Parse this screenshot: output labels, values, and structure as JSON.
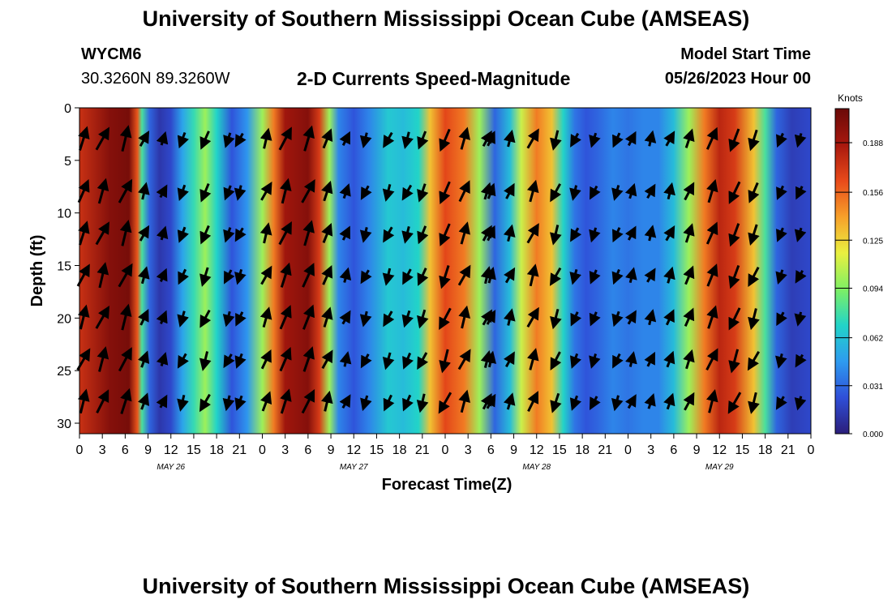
{
  "header": {
    "title": "University of Southern Mississippi Ocean Cube (AMSEAS)",
    "station": "WYCM6",
    "coords": "30.3260N  89.3260W",
    "subtitle": "2-D Currents Speed-Magnitude",
    "model_label": "Model Start Time",
    "model_time": "05/26/2023 Hour 00"
  },
  "footer": {
    "title": "University of Southern Mississippi Ocean Cube (AMSEAS)"
  },
  "chart_data": {
    "type": "heatmap",
    "title": "2-D Currents Speed-Magnitude",
    "xlabel": "Forecast Time(Z)",
    "ylabel": "Depth (ft)",
    "xlim": [
      0,
      96
    ],
    "ylim": [
      0,
      31
    ],
    "y_inverted": true,
    "x_tick_values": [
      0,
      3,
      6,
      9,
      12,
      15,
      18,
      21,
      24,
      27,
      30,
      33,
      36,
      39,
      42,
      45,
      48,
      51,
      54,
      57,
      60,
      63,
      66,
      69,
      72,
      75,
      78,
      81,
      84,
      87,
      90,
      93,
      96
    ],
    "x_tick_labels": [
      "0",
      "3",
      "6",
      "9",
      "12",
      "15",
      "18",
      "21",
      "0",
      "3",
      "6",
      "9",
      "12",
      "15",
      "18",
      "21",
      "0",
      "3",
      "6",
      "9",
      "12",
      "15",
      "18",
      "21",
      "0",
      "3",
      "6",
      "9",
      "12",
      "15",
      "18",
      "21",
      "0"
    ],
    "day_labels": [
      {
        "label": "MAY 26",
        "at": 12
      },
      {
        "label": "MAY 27",
        "at": 36
      },
      {
        "label": "MAY 28",
        "at": 60
      },
      {
        "label": "MAY 29",
        "at": 84
      }
    ],
    "y_ticks": [
      0,
      5,
      10,
      15,
      20,
      25,
      30
    ],
    "colorbar": {
      "title": "Knots",
      "min": 0.0,
      "max": 0.21,
      "tick_labels": [
        "0.000",
        "0.031",
        "0.062",
        "0.094",
        "0.125",
        "0.156",
        "0.188"
      ],
      "colors": [
        "#2b1e7a",
        "#2f4fd8",
        "#2e9bf0",
        "#22d4c8",
        "#7ef064",
        "#eaf040",
        "#f7a02a",
        "#e84a1a",
        "#a8180e",
        "#6a0a08"
      ]
    },
    "speed_profile_knots": [
      {
        "t": 0,
        "v": 0.175
      },
      {
        "t": 4,
        "v": 0.2
      },
      {
        "t": 6.5,
        "v": 0.205
      },
      {
        "t": 7.6,
        "v": 0.16
      },
      {
        "t": 8.2,
        "v": 0.08
      },
      {
        "t": 9.2,
        "v": 0.03
      },
      {
        "t": 10.5,
        "v": 0.012
      },
      {
        "t": 12,
        "v": 0.02
      },
      {
        "t": 13.5,
        "v": 0.05
      },
      {
        "t": 15,
        "v": 0.075
      },
      {
        "t": 16.5,
        "v": 0.1
      },
      {
        "t": 18,
        "v": 0.07
      },
      {
        "t": 20,
        "v": 0.025
      },
      {
        "t": 22,
        "v": 0.045
      },
      {
        "t": 24,
        "v": 0.1
      },
      {
        "t": 25.5,
        "v": 0.15
      },
      {
        "t": 27,
        "v": 0.19
      },
      {
        "t": 30,
        "v": 0.2
      },
      {
        "t": 31.5,
        "v": 0.17
      },
      {
        "t": 32.8,
        "v": 0.1
      },
      {
        "t": 34,
        "v": 0.04
      },
      {
        "t": 36,
        "v": 0.025
      },
      {
        "t": 38,
        "v": 0.04
      },
      {
        "t": 40.5,
        "v": 0.065
      },
      {
        "t": 42.5,
        "v": 0.06
      },
      {
        "t": 44.5,
        "v": 0.07
      },
      {
        "t": 46,
        "v": 0.13
      },
      {
        "t": 48,
        "v": 0.165
      },
      {
        "t": 50.5,
        "v": 0.15
      },
      {
        "t": 52.5,
        "v": 0.1
      },
      {
        "t": 54.5,
        "v": 0.03
      },
      {
        "t": 56.5,
        "v": 0.06
      },
      {
        "t": 58,
        "v": 0.11
      },
      {
        "t": 60,
        "v": 0.15
      },
      {
        "t": 62,
        "v": 0.13
      },
      {
        "t": 63.5,
        "v": 0.07
      },
      {
        "t": 65,
        "v": 0.035
      },
      {
        "t": 66.5,
        "v": 0.025
      },
      {
        "t": 68,
        "v": 0.03
      },
      {
        "t": 70,
        "v": 0.04
      },
      {
        "t": 72,
        "v": 0.035
      },
      {
        "t": 74,
        "v": 0.04
      },
      {
        "t": 76,
        "v": 0.04
      },
      {
        "t": 78,
        "v": 0.06
      },
      {
        "t": 80,
        "v": 0.1
      },
      {
        "t": 82,
        "v": 0.15
      },
      {
        "t": 84,
        "v": 0.18
      },
      {
        "t": 86,
        "v": 0.17
      },
      {
        "t": 88.5,
        "v": 0.13
      },
      {
        "t": 90,
        "v": 0.08
      },
      {
        "t": 91.5,
        "v": 0.03
      },
      {
        "t": 93.5,
        "v": 0.015
      },
      {
        "t": 96,
        "v": 0.02
      }
    ],
    "vector_times": [
      0.5,
      3,
      6,
      8.5,
      11,
      13.5,
      16.5,
      19.5,
      21,
      24.5,
      27,
      30,
      32.5,
      35,
      37.5,
      40.5,
      43,
      45,
      48,
      50.5,
      53.5,
      54,
      56.5,
      59.5,
      62.5,
      65,
      67.5,
      70.5,
      72.5,
      75,
      77.5,
      80,
      83,
      86,
      88.5,
      92,
      94.5
    ],
    "vector_depths": [
      3,
      8,
      12,
      16,
      20,
      24,
      28
    ]
  }
}
